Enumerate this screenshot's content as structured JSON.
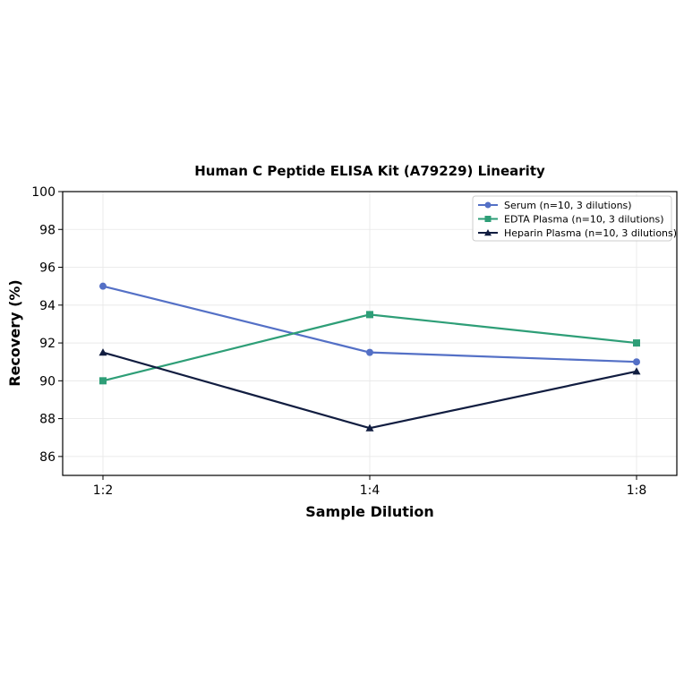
{
  "chart_data": {
    "type": "line",
    "title": "Human C Peptide ELISA Kit (A79229) Linearity",
    "xlabel": "Sample Dilution",
    "ylabel": "Recovery (%)",
    "categories": [
      "1:2",
      "1:4",
      "1:8"
    ],
    "ylim": [
      85,
      100
    ],
    "yticks": [
      86,
      88,
      90,
      92,
      94,
      96,
      98,
      100
    ],
    "grid": true,
    "legend_position": "top-right",
    "series": [
      {
        "name": "Serum (n=10, 3 dilutions)",
        "values": [
          95,
          91.5,
          91
        ],
        "color": "#5470c6",
        "marker": "circle"
      },
      {
        "name": "EDTA Plasma (n=10, 3 dilutions)",
        "values": [
          90,
          93.5,
          92
        ],
        "color": "#2e9e77",
        "marker": "square"
      },
      {
        "name": "Heparin Plasma (n=10, 3 dilutions)",
        "values": [
          91.5,
          87.5,
          90.5
        ],
        "color": "#111d40",
        "marker": "triangle"
      }
    ]
  }
}
